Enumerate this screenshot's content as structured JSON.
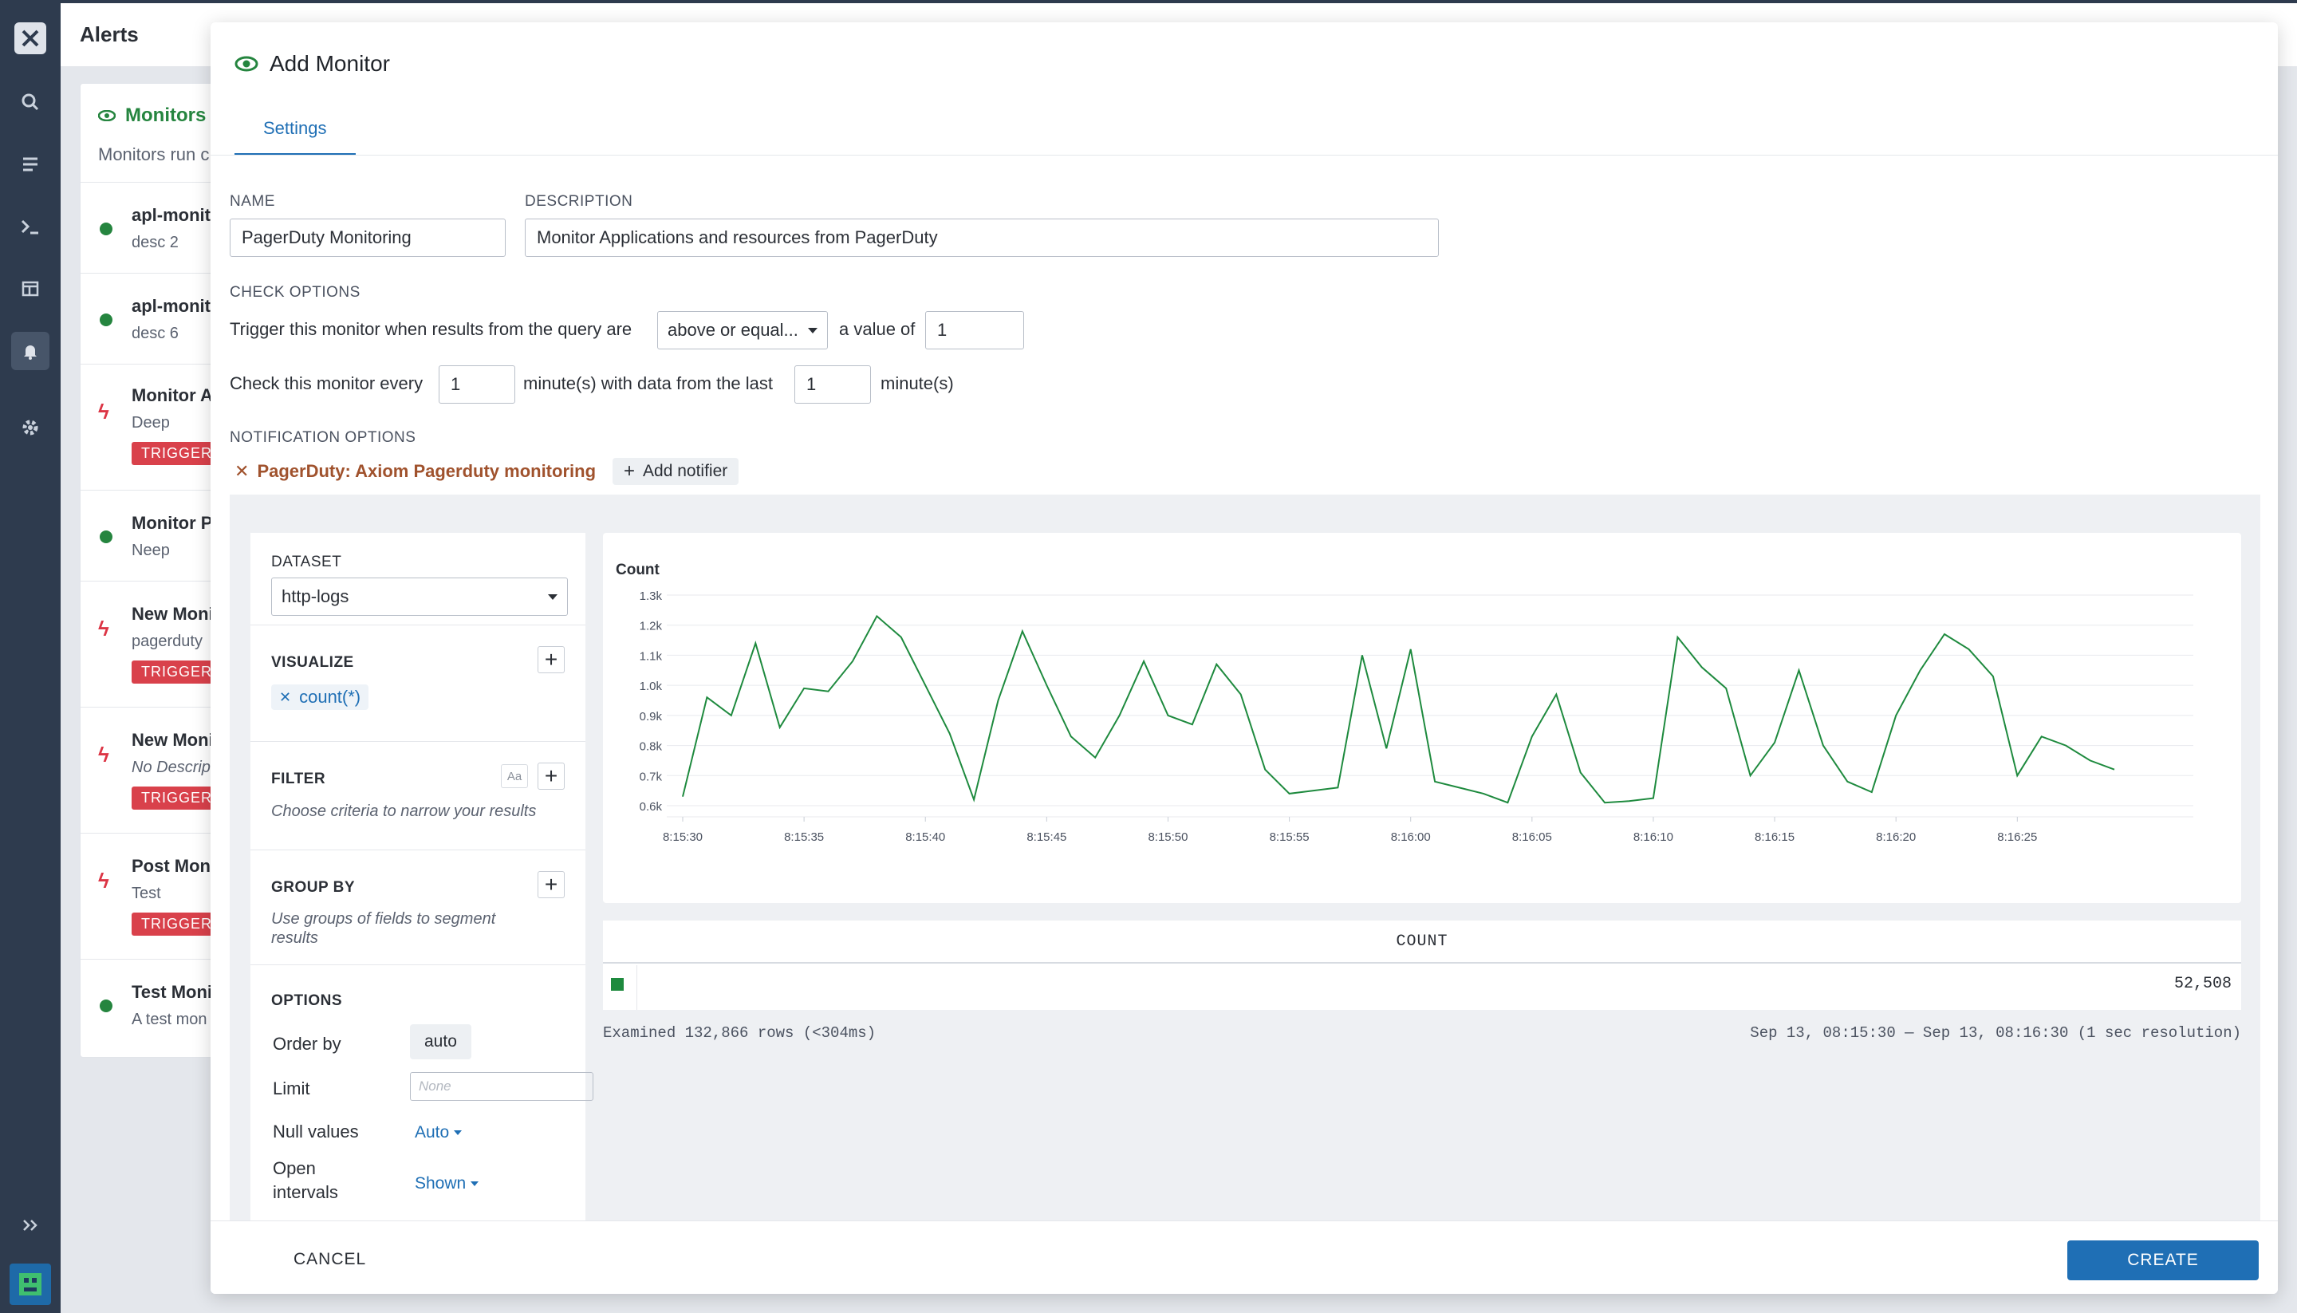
{
  "background": {
    "page_title": "Alerts",
    "panel_title": "Monitors",
    "panel_subtitle": "Monitors run c",
    "items": [
      {
        "name": "apl-monit",
        "desc": "desc 2",
        "status": "ok"
      },
      {
        "name": "apl-monit",
        "desc": "desc 6",
        "status": "ok"
      },
      {
        "name": "Monitor A",
        "desc": "Deep",
        "status": "triggered",
        "badge": "TRIGGERE"
      },
      {
        "name": "Monitor P",
        "desc": "Neep",
        "status": "ok"
      },
      {
        "name": "New Moni",
        "desc": "pagerduty",
        "status": "triggered",
        "badge": "TRIGGERE"
      },
      {
        "name": "New Moni",
        "desc": "No Descrip",
        "status": "triggered",
        "badge": "TRIGGERE"
      },
      {
        "name": "Post Moni",
        "desc": "Test",
        "status": "triggered",
        "badge": "TRIGGERE"
      },
      {
        "name": "Test Moni",
        "desc": "A test mon",
        "status": "ok"
      }
    ]
  },
  "modal": {
    "title": "Add Monitor",
    "tab": "Settings",
    "name_label": "NAME",
    "name_value": "PagerDuty Monitoring",
    "description_label": "DESCRIPTION",
    "description_value": "Monitor Applications and resources from PagerDuty",
    "check_options_label": "CHECK OPTIONS",
    "trigger_text": "Trigger this monitor when results from the query are",
    "operator_value": "above or equal...",
    "value_of_text": "a value of",
    "threshold_value": "1",
    "check_every_text": "Check this monitor every",
    "every_value": "1",
    "minutes_with_text": "minute(s) with data from the last",
    "last_value": "1",
    "minutes_text": "minute(s)",
    "notification_label": "NOTIFICATION OPTIONS",
    "notifier": "PagerDuty: Axiom Pagerduty monitoring",
    "add_notifier": "Add notifier",
    "cancel": "CANCEL",
    "create": "CREATE"
  },
  "query": {
    "dataset_label": "DATASET",
    "dataset_value": "http-logs",
    "visualize_label": "VISUALIZE",
    "visualize_chip": "count(*)",
    "filter_label": "FILTER",
    "filter_hint": "Choose criteria to narrow your results",
    "aa": "Aa",
    "groupby_label": "GROUP BY",
    "groupby_hint": "Use groups of fields to segment results",
    "options_label": "OPTIONS",
    "order_by_label": "Order by",
    "order_by_value": "auto",
    "limit_label": "Limit",
    "limit_placeholder": "None",
    "null_values_label": "Null values",
    "null_values_value": "Auto",
    "open_intervals_label": "Open intervals",
    "open_intervals_value": "Shown"
  },
  "results": {
    "table_header": "COUNT",
    "table_value": "52,508",
    "examined": "Examined 132,866 rows (<304ms)",
    "range": "Sep 13, 08:15:30 — Sep 13, 08:16:30 (1 sec resolution)"
  },
  "colors": {
    "accent": "#1f6fb5",
    "series": "#1e8a3e",
    "ok": "#25853f",
    "triggered": "#d9414b"
  },
  "chart_data": {
    "type": "line",
    "title": "Count",
    "ylim": [
      0.6,
      1.3
    ],
    "y_ticks": [
      "0.6k",
      "0.7k",
      "0.8k",
      "0.9k",
      "1.0k",
      "1.1k",
      "1.2k",
      "1.3k"
    ],
    "x_ticks": [
      "8:15:30",
      "8:15:35",
      "8:15:40",
      "8:15:45",
      "8:15:50",
      "8:15:55",
      "8:16:00",
      "8:16:05",
      "8:16:10",
      "8:16:15",
      "8:16:20",
      "8:16:25"
    ],
    "grid": true,
    "series": [
      {
        "values": [
          0.63,
          0.96,
          0.9,
          1.14,
          0.86,
          0.99,
          0.98,
          1.08,
          1.23,
          1.16,
          1.0,
          0.84,
          0.62,
          0.95,
          1.18,
          1.0,
          0.83,
          0.76,
          0.9,
          1.08,
          0.9,
          0.87,
          1.07,
          0.97,
          0.72,
          0.64,
          0.65,
          0.66,
          1.1,
          0.79,
          1.12,
          0.68,
          0.66,
          0.64,
          0.61,
          0.83,
          0.97,
          0.71,
          0.61,
          0.615,
          0.625,
          1.16,
          1.06,
          0.99,
          0.7,
          0.81,
          1.05,
          0.8,
          0.68,
          0.645,
          0.9,
          1.05,
          1.17,
          1.12,
          1.03,
          0.7,
          0.83,
          0.8,
          0.75,
          0.72
        ]
      }
    ]
  }
}
